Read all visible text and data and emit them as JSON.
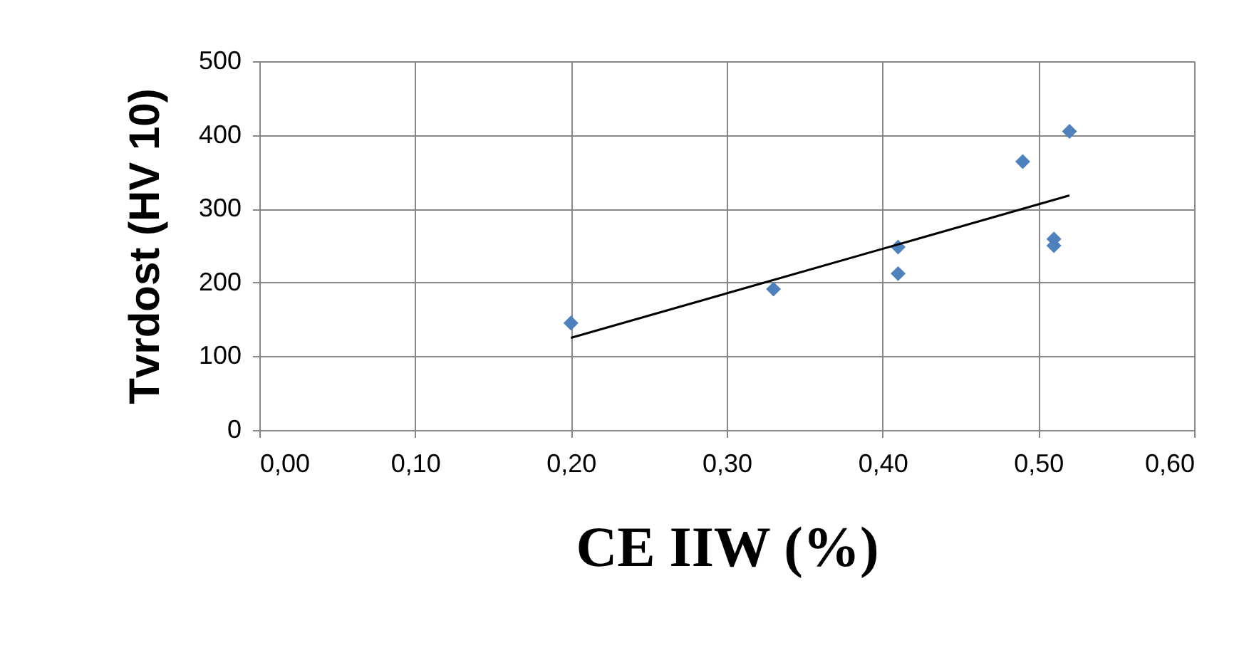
{
  "chart_data": {
    "type": "scatter",
    "xlabel": "CE IIW (%)",
    "ylabel": "Tvrdost (HV 10)",
    "series": [
      {
        "color": "#4f81bd",
        "marker": "diamond",
        "x": [
          0.2,
          0.33,
          0.41,
          0.41,
          0.49,
          0.51,
          0.51,
          0.52
        ],
        "values": [
          145,
          191,
          248,
          212,
          364,
          259,
          250,
          405
        ]
      },
      {
        "type": "line",
        "color": "#000000",
        "marker": "none",
        "line_style": "solid",
        "x": [
          0.2,
          0.52
        ],
        "values": [
          125,
          318
        ]
      }
    ],
    "xlim": [
      0,
      0.6
    ],
    "xticks": [
      {
        "value": 0,
        "label": "0,00"
      },
      {
        "value": 0.1,
        "label": "0,10"
      },
      {
        "value": 0.2,
        "label": "0,20"
      },
      {
        "value": 0.3,
        "label": "0,30"
      },
      {
        "value": 0.4,
        "label": "0,40"
      },
      {
        "value": 0.5,
        "label": "0,50"
      },
      {
        "value": 0.6,
        "label": "0,60"
      }
    ],
    "ylim": [
      0,
      500
    ],
    "yticks": [
      0,
      100,
      200,
      300,
      400,
      500
    ],
    "grid": true
  }
}
